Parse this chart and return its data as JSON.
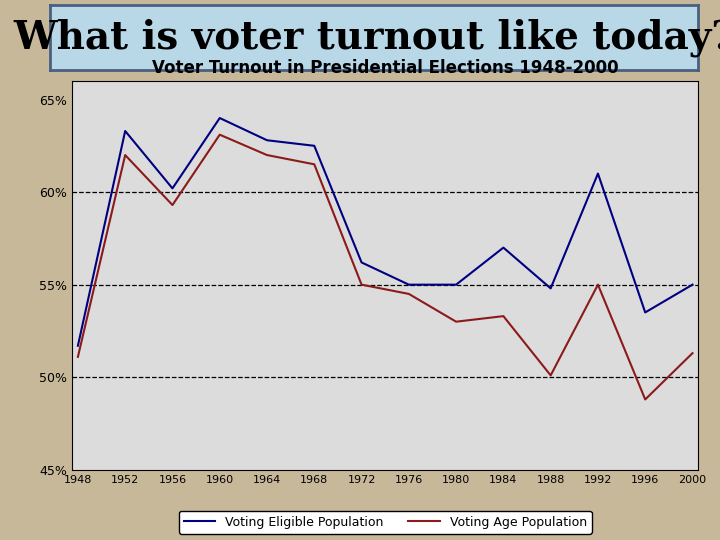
{
  "title": "Voter Turnout in Presidential Elections 1948-2000",
  "header_text": "What is voter turnout like today?",
  "years": [
    1948,
    1952,
    1956,
    1960,
    1964,
    1968,
    1972,
    1976,
    1980,
    1984,
    1988,
    1992,
    1996,
    2000
  ],
  "vep": [
    51.7,
    63.3,
    60.2,
    64.0,
    62.8,
    62.5,
    56.2,
    55.0,
    55.0,
    57.0,
    54.8,
    61.0,
    53.5,
    55.0
  ],
  "vap": [
    51.1,
    62.0,
    59.3,
    63.1,
    62.0,
    61.5,
    55.0,
    54.5,
    53.0,
    53.3,
    50.1,
    55.0,
    48.8,
    51.3
  ],
  "vep_color": "#000080",
  "vap_color": "#8B1A1A",
  "plot_bg": "#DCDCDC",
  "outer_bg": "#C8B89A",
  "chart_area_bg": "#E8E8E8",
  "ylim": [
    45,
    66
  ],
  "yticks": [
    45,
    50,
    55,
    60,
    65
  ],
  "ytick_labels": [
    "45%",
    "50%",
    "55%",
    "60%",
    "65%"
  ],
  "grid_lines": [
    50,
    55,
    60
  ],
  "legend_vep": "Voting Eligible Population",
  "legend_vap": "Voting Age Population",
  "title_fontsize": 12,
  "header_fontsize": 28,
  "header_bg": "#B8D8E8",
  "header_text_color": "#000000",
  "header_border_color": "#4A6080"
}
